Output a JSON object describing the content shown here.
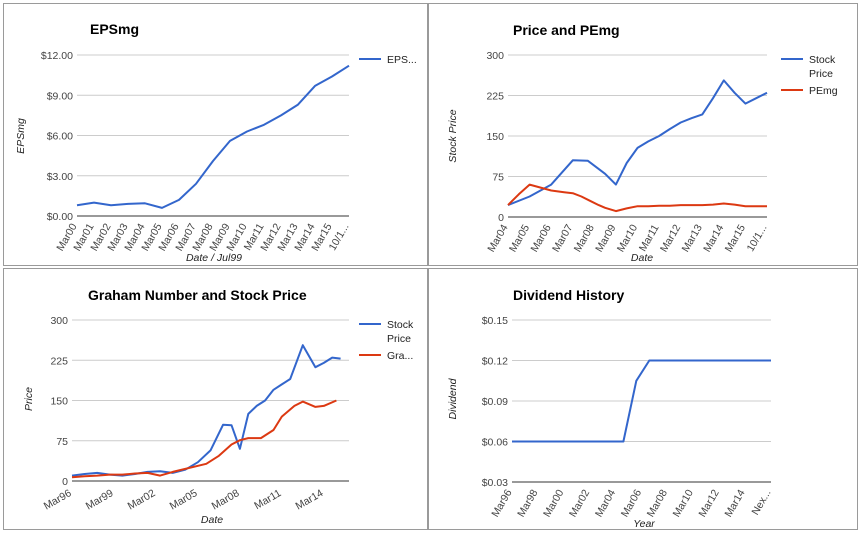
{
  "chart_data": [
    {
      "type": "line",
      "title": "EPSmg",
      "xlabel": "Date / Jul99",
      "ylabel": "EPSmg",
      "categories": [
        "Mar00",
        "Mar01",
        "Mar02",
        "Mar03",
        "Mar04",
        "Mar05",
        "Mar06",
        "Mar07",
        "Mar08",
        "Mar09",
        "Mar10",
        "Mar11",
        "Mar12",
        "Mar13",
        "Mar14",
        "Mar15",
        "10/1..."
      ],
      "yticks": [
        "$0.00",
        "$3.00",
        "$6.00",
        "$9.00",
        "$12.00"
      ],
      "ylim": [
        0,
        12
      ],
      "legend": "right",
      "series": [
        {
          "name": "EPS...",
          "color": "#3366cc",
          "values": [
            0.8,
            1.0,
            0.8,
            0.9,
            0.95,
            0.6,
            1.2,
            2.4,
            4.1,
            5.6,
            6.3,
            6.8,
            7.5,
            8.3,
            9.7,
            10.4,
            11.2
          ]
        }
      ]
    },
    {
      "type": "line",
      "title": "Price and PEmg",
      "xlabel": "Date",
      "ylabel": "Stock Price",
      "categories": [
        "Mar04",
        "Mar05",
        "Mar06",
        "Mar07",
        "Mar08",
        "Mar09",
        "Mar10",
        "Mar11",
        "Mar12",
        "Mar13",
        "Mar14",
        "Mar15",
        "10/1..."
      ],
      "yticks": [
        "0",
        "75",
        "150",
        "225",
        "300"
      ],
      "ylim": [
        0,
        300
      ],
      "legend": "right",
      "series": [
        {
          "name": "Stock Price",
          "color": "#3366cc",
          "x": [
            0,
            1,
            2,
            3,
            3.7,
            4.5,
            5,
            5.5,
            6,
            6.5,
            7,
            7.5,
            8,
            8.5,
            9,
            9.5,
            10,
            10.5,
            11,
            11.5,
            12
          ],
          "values": [
            22,
            38,
            60,
            105,
            104,
            80,
            60,
            100,
            128,
            140,
            150,
            163,
            175,
            183,
            190,
            220,
            253,
            230,
            210,
            220,
            230
          ]
        },
        {
          "name": "PEmg",
          "color": "#dc3912",
          "x": [
            0,
            0.5,
            1,
            2,
            2.6,
            3,
            3.4,
            3.8,
            4.2,
            4.5,
            5,
            5.5,
            6,
            6.5,
            7,
            7.5,
            8,
            8.5,
            9,
            9.5,
            10,
            10.5,
            11,
            11.5,
            12
          ],
          "values": [
            22,
            42,
            60,
            49,
            46,
            44,
            38,
            30,
            22,
            17,
            11,
            16,
            20,
            20,
            21,
            21,
            22,
            22,
            22,
            23,
            25,
            23,
            20,
            20,
            20
          ]
        }
      ]
    },
    {
      "type": "line",
      "title": "Graham Number and Stock Price",
      "xlabel": "Date",
      "ylabel": "Price",
      "categories": [
        "Mar96",
        "Mar99",
        "Mar02",
        "Mar05",
        "Mar08",
        "Mar11",
        "Mar14"
      ],
      "yticks": [
        "0",
        "75",
        "150",
        "225",
        "300"
      ],
      "ylim": [
        0,
        300
      ],
      "legend": "right",
      "series": [
        {
          "name": "Stock Price",
          "color": "#3366cc",
          "x": [
            0,
            0.3,
            0.6,
            0.9,
            1.2,
            1.5,
            1.8,
            2.1,
            2.4,
            2.7,
            3,
            3.3,
            3.6,
            3.8,
            4,
            4.2,
            4.4,
            4.6,
            4.8,
            5,
            5.2,
            5.5,
            5.8,
            6,
            6.2,
            6.4
          ],
          "values": [
            10,
            13,
            15,
            12,
            10,
            13,
            17,
            18,
            15,
            21,
            35,
            57,
            105,
            104,
            60,
            125,
            140,
            150,
            170,
            180,
            190,
            253,
            212,
            220,
            230,
            228
          ]
        },
        {
          "name": "Gra...",
          "color": "#dc3912",
          "x": [
            0,
            0.3,
            0.6,
            0.9,
            1.2,
            1.5,
            1.8,
            2.1,
            2.4,
            3.2,
            3.5,
            3.8,
            4,
            4.2,
            4.5,
            4.8,
            5,
            5.3,
            5.5,
            5.8,
            6,
            6.3
          ],
          "values": [
            7,
            9,
            10,
            12,
            12,
            14,
            15,
            10,
            17,
            32,
            47,
            68,
            76,
            80,
            80,
            95,
            120,
            140,
            148,
            138,
            140,
            150
          ]
        }
      ]
    },
    {
      "type": "line",
      "title": "Dividend History",
      "xlabel": "Year",
      "ylabel": "Dividend",
      "categories": [
        "Mar96",
        "Mar98",
        "Mar00",
        "Mar02",
        "Mar04",
        "Mar06",
        "Mar08",
        "Mar10",
        "Mar12",
        "Mar14",
        "Nex..."
      ],
      "yticks": [
        "$0.03",
        "$0.06",
        "$0.09",
        "$0.12",
        "$0.15"
      ],
      "ylim": [
        0.03,
        0.15
      ],
      "legend": "none",
      "series": [
        {
          "name": "",
          "color": "#3366cc",
          "x": [
            0,
            4.3,
            4.8,
            5.3,
            10
          ],
          "values": [
            0.06,
            0.06,
            0.105,
            0.12,
            0.12
          ]
        }
      ]
    }
  ]
}
